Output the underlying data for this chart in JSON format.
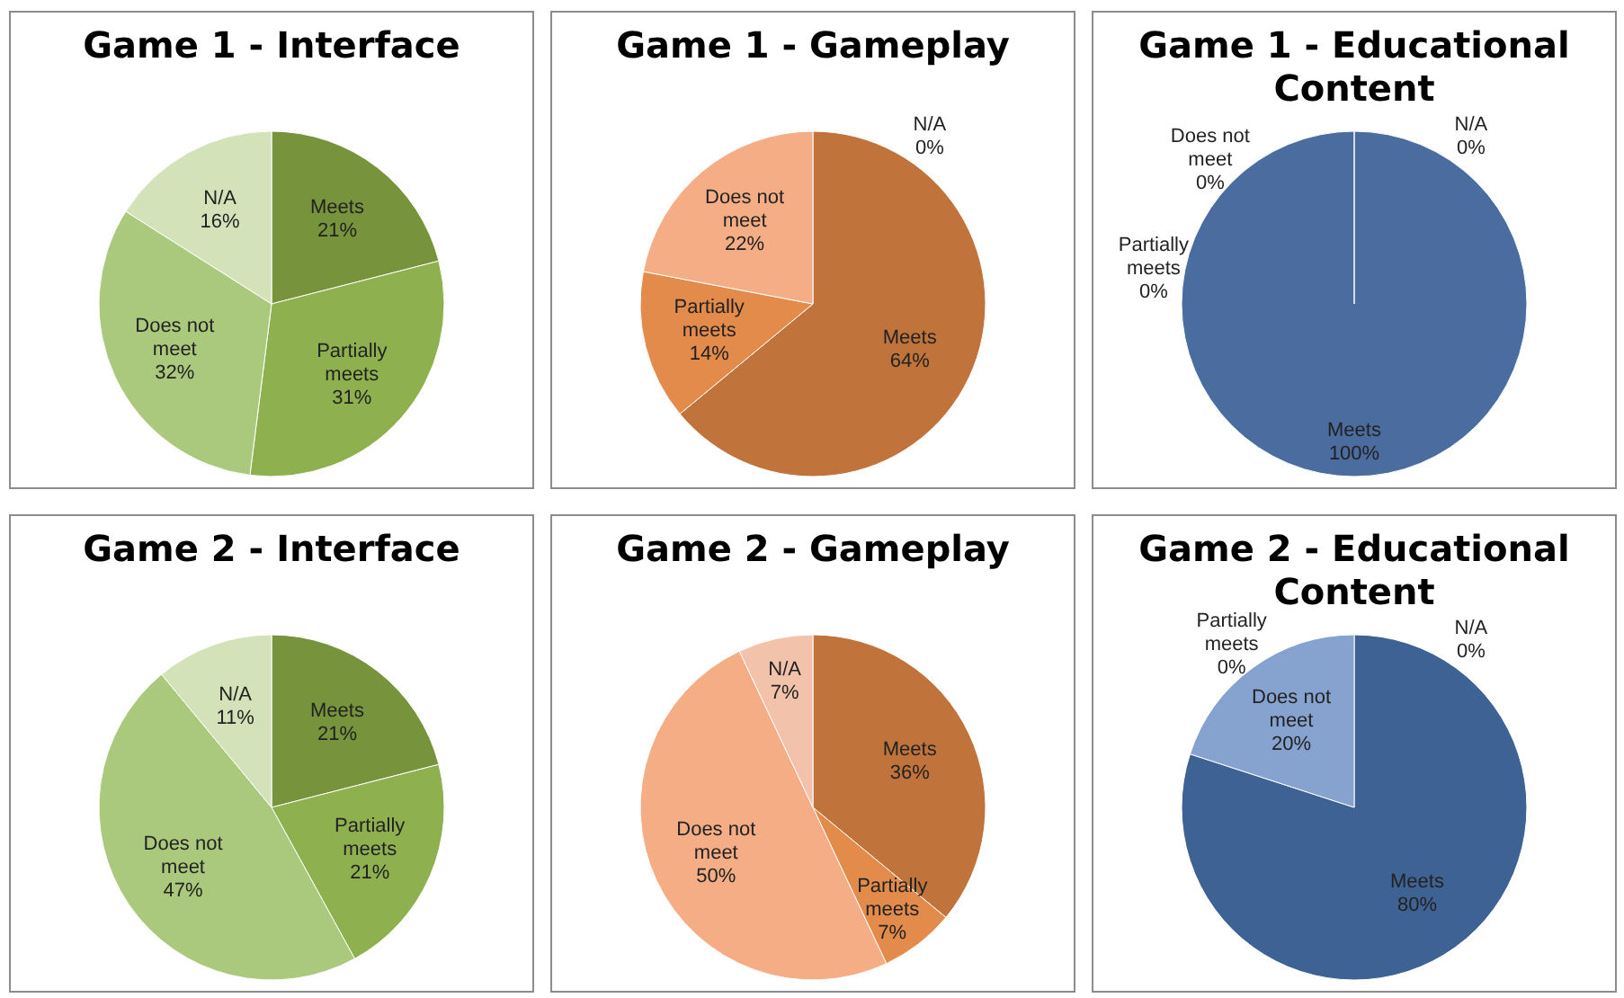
{
  "chart_data": [
    {
      "type": "pie",
      "title": "Game 1 - Interface",
      "categories": [
        "Meets",
        "Partially meets",
        "Does not meet",
        "N/A"
      ],
      "values": [
        21,
        31,
        32,
        16
      ],
      "value_labels": [
        "21%",
        "31%",
        "32%",
        "16%"
      ],
      "colors": [
        "#77933c",
        "#8fb04f",
        "#abc97d",
        "#d3e2b8"
      ],
      "legend": false
    },
    {
      "type": "pie",
      "title": "Game 1 - Gameplay",
      "categories": [
        "Meets",
        "Partially meets",
        "Does not meet",
        "N/A"
      ],
      "values": [
        64,
        14,
        22,
        0
      ],
      "value_labels": [
        "64%",
        "14%",
        "22%",
        "0%"
      ],
      "colors": [
        "#c0743c",
        "#e38b4a",
        "#f4ad84",
        "#f7cbb3"
      ],
      "legend": false
    },
    {
      "type": "pie",
      "title": "Game 1 - Educational Content",
      "categories": [
        "Meets",
        "Partially meets",
        "Does not meet",
        "N/A"
      ],
      "values": [
        100,
        0,
        0,
        0
      ],
      "value_labels": [
        "100%",
        "0%",
        "0%",
        "0%"
      ],
      "colors": [
        "#4a6c9e",
        "#5a7db0",
        "#7f9dcc",
        "#b7c7e2"
      ],
      "legend": false
    },
    {
      "type": "pie",
      "title": "Game 2 - Interface",
      "categories": [
        "Meets",
        "Partially meets",
        "Does not meet",
        "N/A"
      ],
      "values": [
        21,
        21,
        47,
        11
      ],
      "value_labels": [
        "21%",
        "21%",
        "47%",
        "11%"
      ],
      "colors": [
        "#77933c",
        "#8fb04f",
        "#abc97d",
        "#d3e2b8"
      ],
      "legend": false
    },
    {
      "type": "pie",
      "title": "Game 2 - Gameplay",
      "categories": [
        "Meets",
        "Partially meets",
        "Does not meet",
        "N/A"
      ],
      "values": [
        36,
        7,
        50,
        7
      ],
      "value_labels": [
        "36%",
        "7%",
        "50%",
        "7%"
      ],
      "colors": [
        "#c0743c",
        "#e38b4a",
        "#f4ad84",
        "#f2c3aa"
      ],
      "legend": false
    },
    {
      "type": "pie",
      "title": "Game 2 - Educational Content",
      "categories": [
        "Meets",
        "Partially meets",
        "Does not meet",
        "N/A"
      ],
      "values": [
        80,
        0,
        20,
        0
      ],
      "value_labels": [
        "80%",
        "0%",
        "20%",
        "0%"
      ],
      "colors": [
        "#3f6294",
        "#5a7db0",
        "#86a2cf",
        "#b7c7e2"
      ],
      "legend": false
    }
  ]
}
